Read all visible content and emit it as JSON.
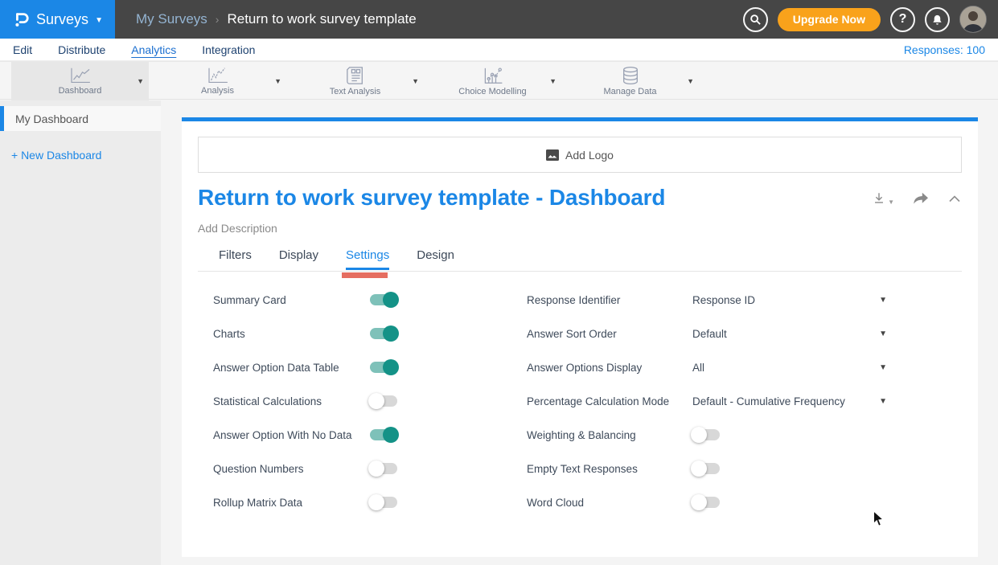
{
  "header": {
    "brand": {
      "label": "Surveys"
    },
    "breadcrumb": {
      "parent": "My Surveys",
      "separator": "›",
      "current": "Return to work survey template"
    },
    "upgrade_label": "Upgrade Now",
    "help_label": "?"
  },
  "nav": {
    "items": [
      {
        "label": "Edit",
        "active": false
      },
      {
        "label": "Distribute",
        "active": false
      },
      {
        "label": "Analytics",
        "active": true
      },
      {
        "label": "Integration",
        "active": false
      }
    ],
    "responses_label": "Responses: 100"
  },
  "toolbar": {
    "items": [
      {
        "label": "Dashboard",
        "icon": "dashboard-chart-icon",
        "active": true
      },
      {
        "label": "Analysis",
        "icon": "analysis-chart-icon",
        "active": false
      },
      {
        "label": "Text Analysis",
        "icon": "text-analysis-icon",
        "active": false
      },
      {
        "label": "Choice Modelling",
        "icon": "choice-modelling-icon",
        "active": false
      },
      {
        "label": "Manage Data",
        "icon": "database-icon",
        "active": false
      }
    ]
  },
  "sidebar": {
    "items": [
      {
        "label": "My Dashboard",
        "active": true
      }
    ],
    "new_dashboard_label": "+ New Dashboard"
  },
  "main": {
    "add_logo_label": "Add Logo",
    "title": "Return to work survey template - Dashboard",
    "description_placeholder": "Add Description",
    "tabs": [
      {
        "label": "Filters",
        "active": false
      },
      {
        "label": "Display",
        "active": false
      },
      {
        "label": "Settings",
        "active": true,
        "annotated": true
      },
      {
        "label": "Design",
        "active": false
      }
    ],
    "settings": {
      "left": [
        {
          "label": "Summary Card",
          "type": "toggle",
          "value": true
        },
        {
          "label": "Charts",
          "type": "toggle",
          "value": true
        },
        {
          "label": "Answer Option Data Table",
          "type": "toggle",
          "value": true
        },
        {
          "label": "Statistical Calculations",
          "type": "toggle",
          "value": false
        },
        {
          "label": "Answer Option With No Data",
          "type": "toggle",
          "value": true
        },
        {
          "label": "Question Numbers",
          "type": "toggle",
          "value": false
        },
        {
          "label": "Rollup Matrix Data",
          "type": "toggle",
          "value": false
        }
      ],
      "right": [
        {
          "label": "Response Identifier",
          "type": "select",
          "value": "Response ID"
        },
        {
          "label": "Answer Sort Order",
          "type": "select",
          "value": "Default"
        },
        {
          "label": "Answer Options Display",
          "type": "select",
          "value": "All"
        },
        {
          "label": "Percentage Calculation Mode",
          "type": "select",
          "value": "Default - Cumulative Frequency"
        },
        {
          "label": "Weighting & Balancing",
          "type": "toggle",
          "value": false
        },
        {
          "label": "Empty Text Responses",
          "type": "toggle",
          "value": false
        },
        {
          "label": "Word Cloud",
          "type": "toggle",
          "value": false
        }
      ]
    }
  },
  "icons": {
    "header": [
      "questionpro-logo-icon",
      "chevron-down-icon",
      "search-icon",
      "question-icon",
      "bell-icon",
      "avatar"
    ],
    "title_actions": [
      "download-icon",
      "share-icon",
      "chevron-up-icon"
    ],
    "add_logo": "image-icon"
  },
  "colors": {
    "brand_blue": "#1b87e6",
    "header_dark": "#464646",
    "accent_orange": "#f9a21b",
    "toggle_on_track": "#7ec1b9",
    "toggle_on_knob": "#149287",
    "toggle_off_track": "#d8d8d8",
    "annotation_red": "#e05545",
    "nav_navy": "#1e4270"
  }
}
